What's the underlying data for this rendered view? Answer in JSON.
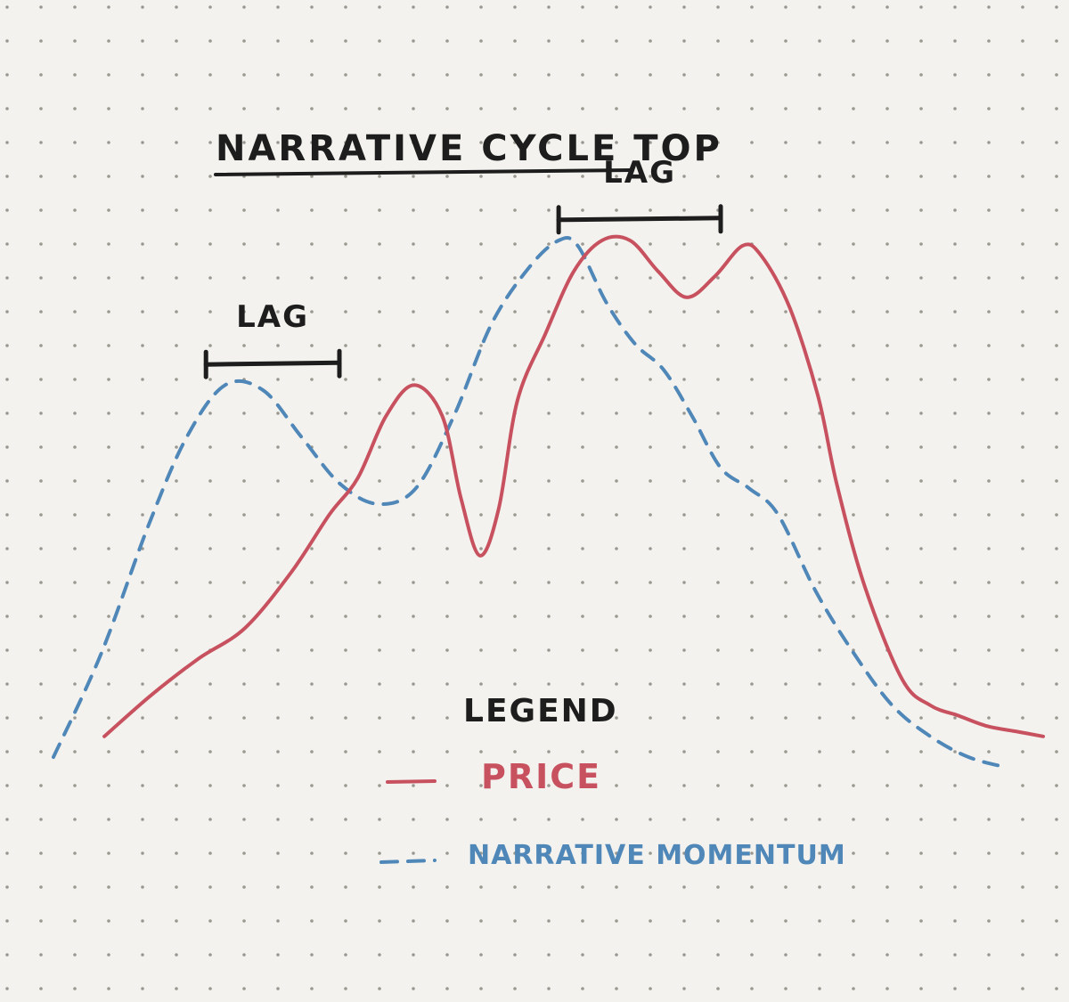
{
  "chart_data": {
    "type": "line",
    "title": "NARRATIVE CYCLE TOP",
    "xlabel": "",
    "ylabel": "",
    "grid": "dot-grid paper background",
    "colors": {
      "price": "#c8515f",
      "narrative_momentum": "#4f87b8",
      "ink": "#1d1d1d",
      "paper": "#f3f2ee",
      "dots": "#9a9890"
    },
    "series": [
      {
        "name": "PRICE",
        "style": "solid",
        "x": [
          0.0,
          0.05,
          0.1,
          0.15,
          0.2,
          0.24,
          0.27,
          0.3,
          0.33,
          0.36,
          0.38,
          0.4,
          0.42,
          0.44,
          0.47,
          0.5,
          0.53,
          0.56,
          0.59,
          0.62,
          0.65,
          0.68,
          0.7,
          0.73,
          0.76,
          0.78,
          0.81,
          0.85,
          0.88,
          0.91,
          0.94,
          0.97,
          1.0
        ],
        "values": [
          0.04,
          0.12,
          0.19,
          0.25,
          0.36,
          0.47,
          0.54,
          0.66,
          0.72,
          0.66,
          0.5,
          0.39,
          0.48,
          0.69,
          0.82,
          0.94,
          1.0,
          1.0,
          0.94,
          0.89,
          0.93,
          0.99,
          0.97,
          0.87,
          0.7,
          0.53,
          0.33,
          0.15,
          0.1,
          0.08,
          0.06,
          0.05,
          0.04
        ]
      },
      {
        "name": "NARRATIVE MOMENTUM",
        "style": "dashed",
        "x": [
          0.0,
          0.05,
          0.1,
          0.14,
          0.18,
          0.22,
          0.26,
          0.3,
          0.34,
          0.38,
          0.42,
          0.46,
          0.5,
          0.53,
          0.55,
          0.58,
          0.61,
          0.64,
          0.67,
          0.7,
          0.73,
          0.76,
          0.8,
          0.84,
          0.88,
          0.92,
          0.96,
          1.0
        ],
        "values": [
          0.0,
          0.2,
          0.45,
          0.62,
          0.72,
          0.71,
          0.62,
          0.53,
          0.49,
          0.52,
          0.66,
          0.84,
          0.95,
          1.0,
          0.99,
          0.88,
          0.8,
          0.75,
          0.66,
          0.56,
          0.52,
          0.47,
          0.32,
          0.2,
          0.1,
          0.04,
          0.0,
          -0.02
        ]
      }
    ],
    "annotations": [
      {
        "text": "LAG",
        "x_start": 0.16,
        "x_end": 0.3,
        "y": 0.76
      },
      {
        "text": "LAG",
        "x_start": 0.53,
        "x_end": 0.7,
        "y": 1.04
      }
    ],
    "legend": {
      "title": "LEGEND",
      "position": "bottom-center",
      "entries": [
        {
          "label": "PRICE",
          "style": "solid",
          "color": "#c8515f"
        },
        {
          "label": "NARRATIVE MOMENTUM",
          "style": "dashed",
          "color": "#4f87b8"
        }
      ]
    }
  }
}
